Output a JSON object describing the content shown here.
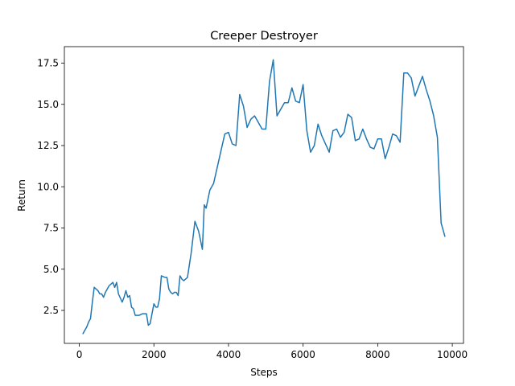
{
  "chart_data": {
    "type": "line",
    "title": "Creeper Destroyer",
    "xlabel": "Steps",
    "ylabel": "Return",
    "xlim": [
      -400,
      10300
    ],
    "ylim": [
      0.5,
      18.5
    ],
    "xticks": [
      0,
      2000,
      4000,
      6000,
      8000,
      10000
    ],
    "xtick_labels": [
      "0",
      "2000",
      "4000",
      "6000",
      "8000",
      "10000"
    ],
    "yticks": [
      2.5,
      5.0,
      7.5,
      10.0,
      12.5,
      15.0,
      17.5
    ],
    "ytick_labels": [
      "2.5",
      "5.0",
      "7.5",
      "10.0",
      "12.5",
      "15.0",
      "17.5"
    ],
    "grid": false,
    "series": [
      {
        "color": "#1f77b4",
        "x": [
          100,
          200,
          250,
          300,
          350,
          400,
          500,
          550,
          600,
          650,
          700,
          800,
          900,
          950,
          1000,
          1050,
          1150,
          1200,
          1250,
          1300,
          1350,
          1400,
          1450,
          1500,
          1600,
          1700,
          1800,
          1850,
          1900,
          1950,
          2000,
          2050,
          2100,
          2150,
          2200,
          2300,
          2350,
          2400,
          2450,
          2500,
          2550,
          2600,
          2650,
          2700,
          2750,
          2800,
          2850,
          2900,
          3000,
          3100,
          3200,
          3300,
          3350,
          3400,
          3500,
          3600,
          3700,
          3800,
          3900,
          4000,
          4100,
          4200,
          4300,
          4400,
          4500,
          4600,
          4700,
          4800,
          4900,
          5000,
          5100,
          5200,
          5300,
          5400,
          5500,
          5600,
          5700,
          5800,
          5900,
          6000,
          6100,
          6200,
          6300,
          6400,
          6500,
          6600,
          6700,
          6800,
          6900,
          7000,
          7100,
          7200,
          7300,
          7400,
          7500,
          7600,
          7700,
          7800,
          7900,
          8000,
          8100,
          8200,
          8300,
          8400,
          8500,
          8600,
          8700,
          8800,
          8900,
          9000,
          9100,
          9200,
          9300,
          9400,
          9500,
          9600,
          9700,
          9800
        ],
        "y": [
          1.1,
          1.5,
          1.8,
          2.0,
          3.0,
          3.9,
          3.7,
          3.5,
          3.5,
          3.3,
          3.6,
          4.0,
          4.2,
          3.9,
          4.2,
          3.5,
          3.0,
          3.3,
          3.7,
          3.3,
          3.4,
          2.7,
          2.6,
          2.2,
          2.2,
          2.3,
          2.3,
          1.6,
          1.7,
          2.3,
          2.9,
          2.7,
          2.7,
          3.2,
          4.6,
          4.5,
          4.5,
          3.8,
          3.6,
          3.5,
          3.6,
          3.6,
          3.4,
          4.6,
          4.4,
          4.3,
          4.4,
          4.5,
          6.0,
          7.9,
          7.3,
          6.2,
          8.9,
          8.7,
          9.8,
          10.2,
          11.2,
          12.2,
          13.2,
          13.3,
          12.6,
          12.5,
          15.6,
          14.9,
          13.6,
          14.1,
          14.3,
          13.9,
          13.5,
          13.5,
          16.4,
          17.7,
          14.3,
          14.7,
          15.1,
          15.1,
          16.0,
          15.2,
          15.1,
          16.2,
          13.4,
          12.1,
          12.5,
          13.8,
          13.1,
          12.6,
          12.1,
          13.4,
          13.5,
          13.0,
          13.3,
          14.4,
          14.2,
          12.8,
          12.9,
          13.5,
          12.9,
          12.4,
          12.3,
          12.9,
          12.9,
          11.7,
          12.4,
          13.2,
          13.1,
          12.7,
          16.9,
          16.9,
          16.6,
          15.5,
          16.1,
          16.7,
          15.9,
          15.2,
          14.3,
          13.0,
          7.8,
          7.0
        ]
      }
    ]
  }
}
